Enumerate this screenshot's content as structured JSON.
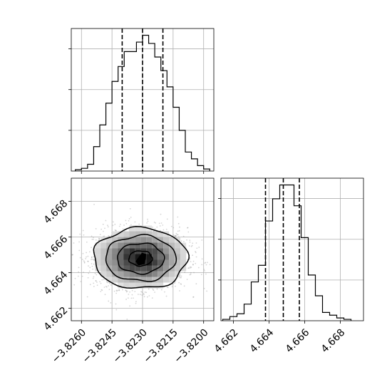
{
  "chart_data": [
    {
      "type": "histogram",
      "panel": "top-left",
      "parameter_index": 0,
      "xlim": [
        -3.8265,
        -3.8195
      ],
      "x_ticks": [
        -3.826,
        -3.8245,
        -3.823,
        -3.8215,
        -3.82
      ],
      "x_tick_labels_visible": false,
      "y_tick_labels_visible": false,
      "grid": true,
      "bins": [
        [
          -3.8263,
          -3.826,
          0.01
        ],
        [
          -3.826,
          -3.8257,
          0.02
        ],
        [
          -3.8257,
          -3.8254,
          0.05
        ],
        [
          -3.8254,
          -3.8251,
          0.18
        ],
        [
          -3.8251,
          -3.8248,
          0.34
        ],
        [
          -3.8248,
          -3.8245,
          0.5
        ],
        [
          -3.8245,
          -3.8242,
          0.66
        ],
        [
          -3.8242,
          -3.8239,
          0.77
        ],
        [
          -3.8239,
          -3.8236,
          0.88
        ],
        [
          -3.8236,
          -3.8233,
          0.88
        ],
        [
          -3.8233,
          -3.823,
          0.95
        ],
        [
          -3.823,
          -3.8227,
          1.0
        ],
        [
          -3.8227,
          -3.8224,
          0.94
        ],
        [
          -3.8224,
          -3.8221,
          0.84
        ],
        [
          -3.8221,
          -3.8218,
          0.74
        ],
        [
          -3.8218,
          -3.8215,
          0.62
        ],
        [
          -3.8215,
          -3.8212,
          0.47
        ],
        [
          -3.8212,
          -3.8209,
          0.3
        ],
        [
          -3.8209,
          -3.8206,
          0.14
        ],
        [
          -3.8206,
          -3.8203,
          0.09
        ],
        [
          -3.8203,
          -3.82,
          0.04
        ],
        [
          -3.82,
          -3.8197,
          0.015
        ]
      ],
      "quantile_lines": [
        -3.824,
        -3.823,
        -3.822
      ]
    },
    {
      "type": "histogram",
      "panel": "bottom-right",
      "parameter_index": 1,
      "xlim": [
        4.6613,
        4.6693
      ],
      "x_ticks": [
        4.662,
        4.664,
        4.666,
        4.668
      ],
      "x_tick_labels": [
        "4.662",
        "4.664",
        "4.666",
        "4.668"
      ],
      "y_tick_labels_visible": false,
      "grid": true,
      "bins": [
        [
          4.6614,
          4.6618,
          0.01
        ],
        [
          4.6618,
          4.6622,
          0.03
        ],
        [
          4.6622,
          4.6626,
          0.05
        ],
        [
          4.6626,
          4.663,
          0.12
        ],
        [
          4.663,
          4.6634,
          0.28
        ],
        [
          4.6634,
          4.6638,
          0.4
        ],
        [
          4.6638,
          4.6642,
          0.72
        ],
        [
          4.6642,
          4.6646,
          0.88
        ],
        [
          4.6646,
          4.665,
          0.98
        ],
        [
          4.665,
          4.6654,
          0.98
        ],
        [
          4.6654,
          4.6658,
          0.83
        ],
        [
          4.6658,
          4.6662,
          0.6
        ],
        [
          4.6662,
          4.6666,
          0.33
        ],
        [
          4.6666,
          4.667,
          0.18
        ],
        [
          4.667,
          4.6674,
          0.06
        ],
        [
          4.6674,
          4.6678,
          0.04
        ],
        [
          4.6678,
          4.6682,
          0.02
        ],
        [
          4.6682,
          4.6686,
          0.01
        ]
      ],
      "quantile_lines": [
        4.6638,
        4.6648,
        4.6657
      ]
    },
    {
      "type": "contour",
      "panel": "bottom-left",
      "x_parameter_index": 0,
      "y_parameter_index": 1,
      "xlim": [
        -3.8265,
        -3.8195
      ],
      "ylim": [
        4.6613,
        4.6693
      ],
      "x_ticks": [
        -3.826,
        -3.8245,
        -3.823,
        -3.8215,
        -3.82
      ],
      "x_tick_labels": [
        "−3.8260",
        "−3.8245",
        "−3.8230",
        "−3.8215",
        "−3.8200"
      ],
      "y_ticks": [
        4.662,
        4.664,
        4.666,
        4.668
      ],
      "y_tick_labels": [
        "4.662",
        "4.664",
        "4.666",
        "4.668"
      ],
      "grid": true,
      "center": [
        -3.8231,
        4.6648
      ],
      "spread": [
        0.00115,
        0.00085
      ],
      "contour_levels_sigma": [
        0.5,
        1.0,
        1.5,
        2.0
      ]
    }
  ]
}
